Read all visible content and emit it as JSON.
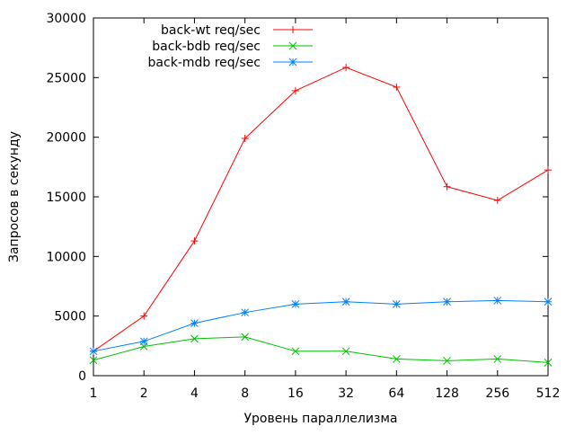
{
  "chart_data": {
    "type": "line",
    "title": "",
    "xlabel": "Уровень параллелизма",
    "ylabel": "Запросов в секунду",
    "x": [
      1,
      2,
      4,
      8,
      16,
      32,
      64,
      128,
      256,
      512
    ],
    "x_tick_labels": [
      "1",
      "2",
      "4",
      "8",
      "16",
      "32",
      "64",
      "128",
      "256",
      "512"
    ],
    "x_scale": "log2",
    "ylim": [
      0,
      30000
    ],
    "y_ticks": [
      0,
      5000,
      10000,
      15000,
      20000,
      25000,
      30000
    ],
    "y_tick_labels": [
      "0",
      "5000",
      "10000",
      "15000",
      "20000",
      "25000",
      "30000"
    ],
    "grid": false,
    "legend_position": "top-left",
    "series": [
      {
        "name": "back-wt req/sec",
        "color": "#ff0000",
        "marker": "plus",
        "values": [
          2050,
          5000,
          11300,
          19900,
          23900,
          25850,
          24200,
          15850,
          14700,
          17250
        ]
      },
      {
        "name": "back-bdb req/sec",
        "color": "#00c000",
        "marker": "cross",
        "values": [
          1300,
          2450,
          3100,
          3250,
          2050,
          2050,
          1400,
          1250,
          1400,
          1100
        ]
      },
      {
        "name": "back-mdb req/sec",
        "color": "#0080ff",
        "marker": "star",
        "values": [
          2050,
          2880,
          4400,
          5300,
          6000,
          6200,
          6000,
          6200,
          6300,
          6200
        ]
      }
    ]
  }
}
